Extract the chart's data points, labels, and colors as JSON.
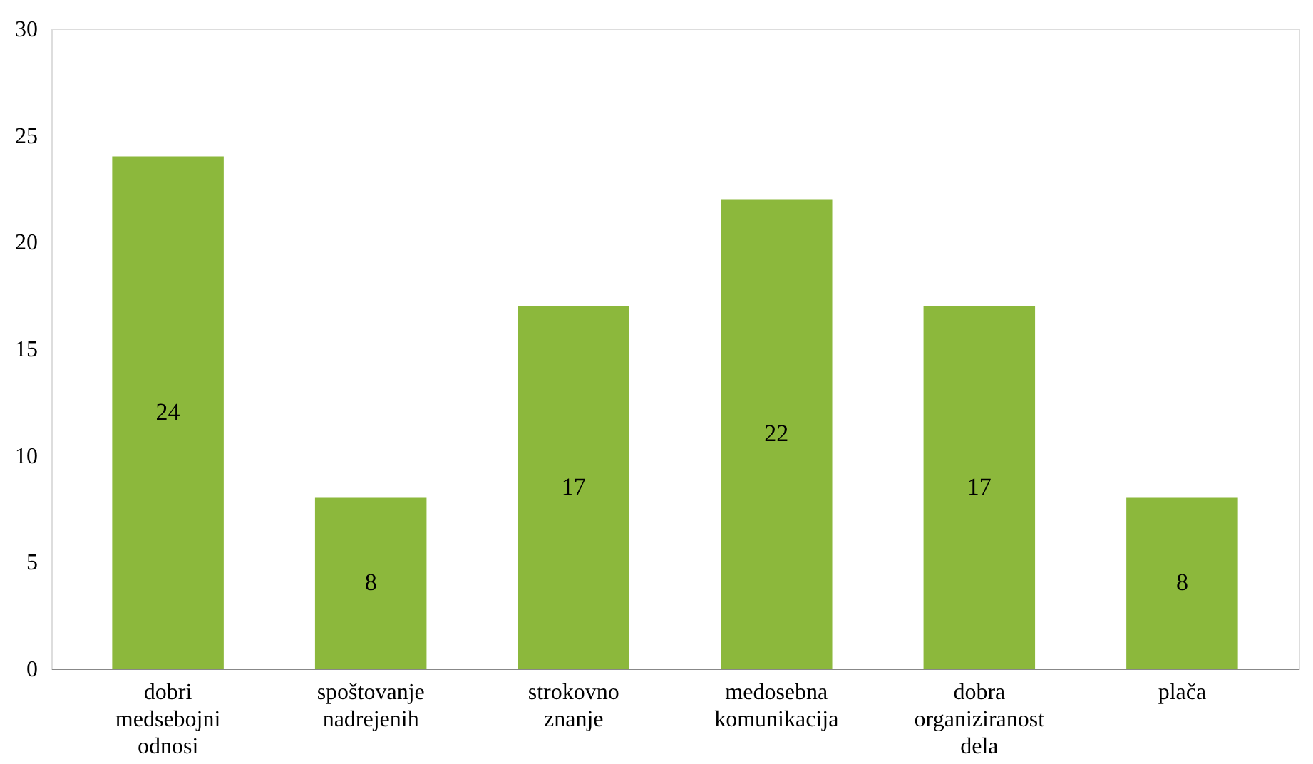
{
  "chart_data": {
    "type": "bar",
    "categories": [
      "dobri medsebojni odnosi",
      "spoštovanje nadrejenih",
      "strokovno znanje",
      "medosebna komunikacija",
      "dobra organiziranost dela",
      "plača"
    ],
    "values": [
      24,
      8,
      17,
      22,
      17,
      8
    ],
    "color": "#8cb83c",
    "ylim": [
      0,
      30
    ],
    "yticks": [
      0,
      5,
      10,
      15,
      20,
      25,
      30
    ],
    "grid": false,
    "data_labels": true
  }
}
